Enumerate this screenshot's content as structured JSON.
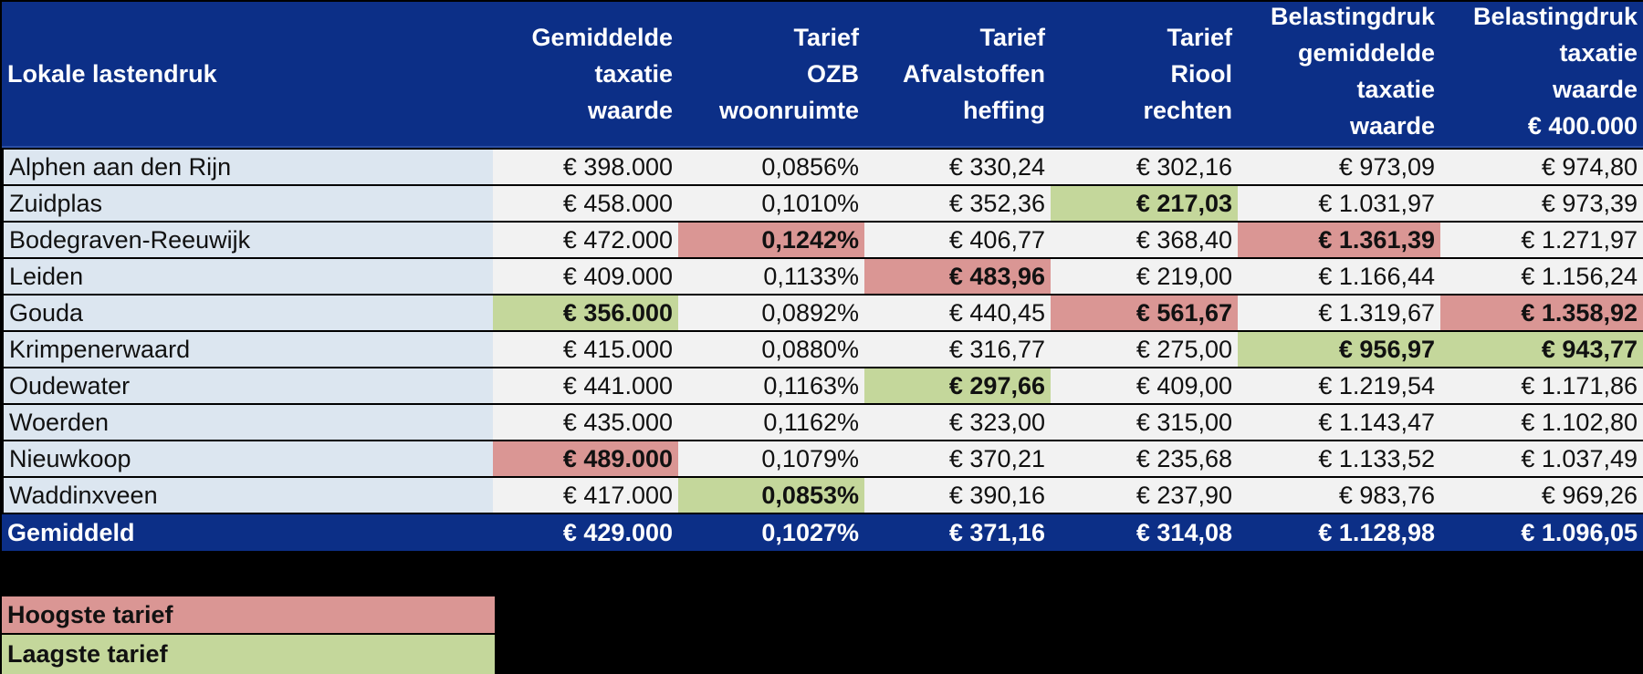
{
  "table": {
    "headers": [
      [
        "Lokale lastendruk"
      ],
      [
        "Gemiddelde",
        "taxatie",
        "waarde"
      ],
      [
        "Tarief",
        "OZB",
        "woonruimte"
      ],
      [
        "Tarief",
        "Afvalstoffen",
        "heffing"
      ],
      [
        "Tarief",
        "Riool",
        "rechten"
      ],
      [
        "Belastingdruk",
        "gemiddelde",
        "taxatie",
        "waarde"
      ],
      [
        "Belastingdruk",
        "taxatie",
        "waarde",
        "€ 400.000"
      ]
    ],
    "rows": [
      {
        "name": "Alphen aan den Rijn",
        "values": [
          "€ 398.000",
          "0,0856%",
          "€ 330,24",
          "€ 302,16",
          "€ 973,09",
          "€ 974,80"
        ],
        "flags": [
          "",
          "",
          "",
          "",
          "",
          ""
        ]
      },
      {
        "name": "Zuidplas",
        "values": [
          "€ 458.000",
          "0,1010%",
          "€ 352,36",
          "€ 217,03",
          "€ 1.031,97",
          "€ 973,39"
        ],
        "flags": [
          "",
          "",
          "",
          "lo",
          "",
          ""
        ]
      },
      {
        "name": "Bodegraven-Reeuwijk",
        "values": [
          "€ 472.000",
          "0,1242%",
          "€ 406,77",
          "€ 368,40",
          "€ 1.361,39",
          "€ 1.271,97"
        ],
        "flags": [
          "",
          "hi",
          "",
          "",
          "hi",
          ""
        ]
      },
      {
        "name": "Leiden",
        "values": [
          "€ 409.000",
          "0,1133%",
          "€ 483,96",
          "€ 219,00",
          "€ 1.166,44",
          "€ 1.156,24"
        ],
        "flags": [
          "",
          "",
          "hi",
          "",
          "",
          ""
        ]
      },
      {
        "name": "Gouda",
        "values": [
          "€ 356.000",
          "0,0892%",
          "€ 440,45",
          "€ 561,67",
          "€ 1.319,67",
          "€ 1.358,92"
        ],
        "flags": [
          "lo",
          "",
          "",
          "hi",
          "",
          "hi"
        ]
      },
      {
        "name": "Krimpenerwaard",
        "values": [
          "€ 415.000",
          "0,0880%",
          "€ 316,77",
          "€ 275,00",
          "€ 956,97",
          "€ 943,77"
        ],
        "flags": [
          "",
          "",
          "",
          "",
          "lo",
          "lo"
        ]
      },
      {
        "name": "Oudewater",
        "values": [
          "€ 441.000",
          "0,1163%",
          "€ 297,66",
          "€ 409,00",
          "€ 1.219,54",
          "€ 1.171,86"
        ],
        "flags": [
          "",
          "",
          "lo",
          "",
          "",
          ""
        ]
      },
      {
        "name": "Woerden",
        "values": [
          "€ 435.000",
          "0,1162%",
          "€ 323,00",
          "€ 315,00",
          "€ 1.143,47",
          "€ 1.102,80"
        ],
        "flags": [
          "",
          "",
          "",
          "",
          "",
          ""
        ]
      },
      {
        "name": "Nieuwkoop",
        "values": [
          "€ 489.000",
          "0,1079%",
          "€ 370,21",
          "€ 235,68",
          "€ 1.133,52",
          "€ 1.037,49"
        ],
        "flags": [
          "hi",
          "",
          "",
          "",
          "",
          ""
        ]
      },
      {
        "name": "Waddinxveen",
        "values": [
          "€ 417.000",
          "0,0853%",
          "€ 390,16",
          "€ 237,90",
          "€ 983,76",
          "€ 969,26"
        ],
        "flags": [
          "",
          "lo",
          "",
          "",
          "",
          ""
        ]
      }
    ],
    "total": {
      "name": "Gemiddeld",
      "values": [
        "€ 429.000",
        "0,1027%",
        "€ 371,16",
        "€ 314,08",
        "€ 1.128,98",
        "€ 1.096,05"
      ]
    }
  },
  "legend": {
    "highest": "Hoogste tarief",
    "lowest": "Laagste tarief"
  },
  "colors": {
    "header_bg": "#0c2f87",
    "highest": "#da9694",
    "lowest": "#c4d79b",
    "name_col_bg": "#dce6f0",
    "row_bg": "#f2f2f2"
  }
}
